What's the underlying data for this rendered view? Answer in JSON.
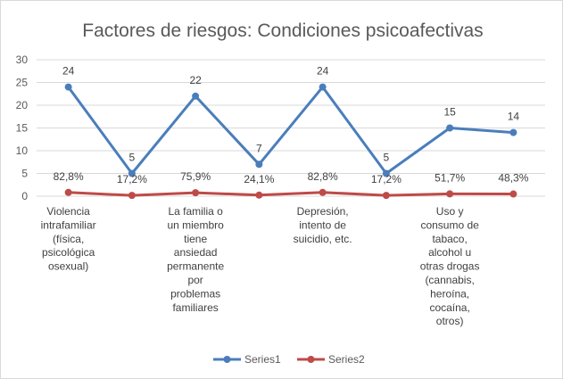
{
  "chart_data": {
    "type": "line",
    "title": "Factores de riesgos: Condiciones psicoafectivas",
    "xlabel": "",
    "ylabel": "",
    "ylim": [
      0,
      30
    ],
    "yticks": [
      0,
      5,
      10,
      15,
      20,
      25,
      30
    ],
    "grid": true,
    "legend_position": "bottom",
    "categories": [
      [
        "Violencia",
        "intrafamiliar",
        "(física,",
        "psicológica",
        "osexual)"
      ],
      [],
      [
        "La familia o",
        "un miembro",
        "tiene",
        "ansiedad",
        "permanente",
        "por",
        "problemas",
        "familiares"
      ],
      [],
      [
        "Depresión,",
        "intento de",
        "suicidio, etc."
      ],
      [],
      [
        "Uso y",
        "consumo de",
        "tabaco,",
        "alcohol u",
        "otras drogas",
        "(cannabis,",
        "heroína,",
        "cocaína,",
        "otros)"
      ],
      []
    ],
    "series": [
      {
        "name": "Series1",
        "color": "#4a7ebb",
        "values": [
          24,
          5,
          22,
          7,
          24,
          5,
          15,
          14
        ],
        "labels": [
          "24",
          "5",
          "22",
          "7",
          "24",
          "5",
          "15",
          "14"
        ]
      },
      {
        "name": "Series2",
        "color": "#be4b48",
        "values": [
          0.828,
          0.172,
          0.759,
          0.241,
          0.828,
          0.172,
          0.517,
          0.483
        ],
        "labels": [
          "82,8%",
          "17,2%",
          "75,9%",
          "24,1%",
          "82,8%",
          "17,2%",
          "51,7%",
          "48,3%"
        ]
      }
    ]
  }
}
